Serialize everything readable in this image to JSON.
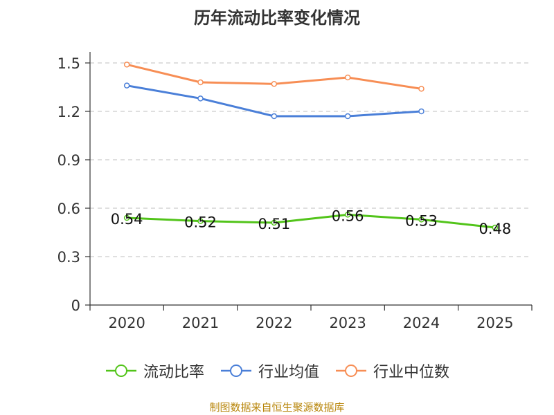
{
  "chart_data": {
    "type": "line",
    "title": "历年流动比率变化情况",
    "categories": [
      "2020",
      "2021",
      "2022",
      "2023",
      "2024",
      "2025"
    ],
    "yticks": [
      "0",
      "0.3",
      "0.6",
      "0.9",
      "1.2",
      "1.5"
    ],
    "ylim": [
      0,
      1.5
    ],
    "grid": true,
    "legend_position": "bottom",
    "series": [
      {
        "name": "流动比率",
        "color": "#52c41a",
        "values": [
          0.54,
          0.52,
          0.51,
          0.56,
          0.53,
          0.48
        ],
        "labels": [
          "0.54",
          "0.52",
          "0.51",
          "0.56",
          "0.53",
          "0.48"
        ]
      },
      {
        "name": "行业均值",
        "color": "#4a7fd8",
        "values": [
          1.36,
          1.28,
          1.17,
          1.17,
          1.2,
          null
        ]
      },
      {
        "name": "行业中位数",
        "color": "#f78e55",
        "values": [
          1.49,
          1.38,
          1.37,
          1.41,
          1.34,
          null
        ]
      }
    ],
    "source": "制图数据来自恒生聚源数据库"
  }
}
